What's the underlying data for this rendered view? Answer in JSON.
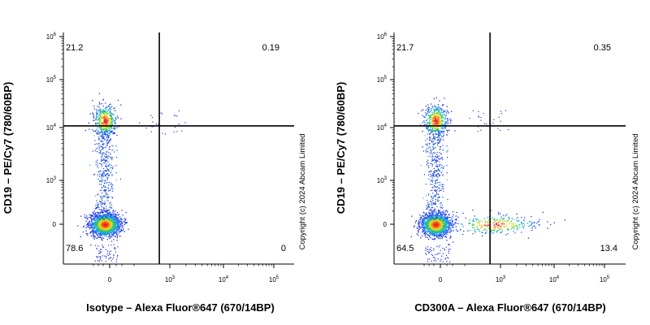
{
  "chart_data": [
    {
      "type": "scatter",
      "xlabel": "Isotype – Alexa Fluor®647 (670/14BP)",
      "ylabel": "CD19 – PE/Cy7 (780/60BP)",
      "x_ticks": [
        "0",
        "10^3",
        "10^4",
        "10^5"
      ],
      "y_ticks": [
        "0",
        "10^3",
        "10^4",
        "10^5",
        "10^6"
      ],
      "quadrants": {
        "upper_left": "21.2",
        "upper_right": "0.19",
        "lower_left": "78.6",
        "lower_right": "0"
      },
      "gate": {
        "x": 300,
        "y": 3000
      },
      "populations": [
        {
          "name": "",
          "x_center": 0,
          "y_center": 14000,
          "percent": 21.2
        },
        {
          "name": "",
          "x_center": 0,
          "y_center": 0,
          "percent": 78.6
        }
      ],
      "watermark": "Copyright (c) 2024 Abcam Limited"
    },
    {
      "type": "scatter",
      "xlabel": "CD300A – Alexa Fluor®647 (670/14BP)",
      "ylabel": "CD19 – PE/Cy7 (780/60BP)",
      "x_ticks": [
        "0",
        "10^3",
        "10^4",
        "10^5"
      ],
      "y_ticks": [
        "0",
        "10^3",
        "10^4",
        "10^5",
        "10^6"
      ],
      "quadrants": {
        "upper_left": "21.7",
        "upper_right": "0.35",
        "lower_left": "64.5",
        "lower_right": "13.4"
      },
      "gate": {
        "x": 300,
        "y": 3000
      },
      "populations": [
        {
          "name": "",
          "x_center": 0,
          "y_center": 14000,
          "percent": 21.7
        },
        {
          "name": "",
          "x_center": 0,
          "y_center": 0,
          "percent": 64.5
        },
        {
          "name": "",
          "x_center": 500,
          "y_center": 0,
          "percent": 13.4
        }
      ],
      "watermark": "Copyright (c) 2024 Abcam Limited"
    }
  ]
}
